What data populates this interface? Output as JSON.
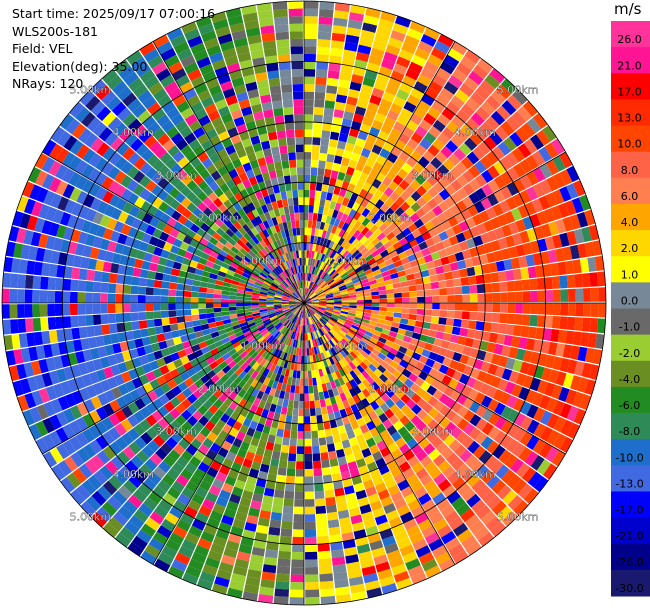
{
  "header": {
    "start_time": "Start time: 2025/09/17 07:00:16",
    "instrument": "WLS200s-181",
    "field": "Field: VEL",
    "elevation": "Elevation(deg): 35.00",
    "nrays": "NRays: 120"
  },
  "chart_data": {
    "type": "heatmap",
    "projection": "polar-ppi",
    "title": "",
    "field": "VEL",
    "n_rays": 120,
    "range_max_km": 5.0,
    "range_gates": 40,
    "range_rings_km": [
      1.0,
      2.0,
      3.0,
      4.0,
      5.0
    ],
    "range_ring_labels": [
      "1.00km",
      "2.00km",
      "3.00km",
      "4.00km",
      "5.00km"
    ],
    "spokes_deg": [
      0,
      30,
      60,
      90,
      120,
      150,
      180,
      210,
      240,
      270,
      300,
      330
    ],
    "colorbar": {
      "unit": "m/s",
      "ticks": [
        "26.0",
        "21.0",
        "17.0",
        "13.0",
        "10.0",
        "8.0",
        "6.0",
        "4.0",
        "2.0",
        "1.0",
        "0.0",
        "-1.0",
        "-2.0",
        "-4.0",
        "-6.0",
        "-8.0",
        "-10.0",
        "-13.0",
        "-17.0",
        "-21.0",
        "-26.0",
        "-30.0"
      ],
      "bins": [
        {
          "lo": 26,
          "hi": 30,
          "color": "#ff3399"
        },
        {
          "lo": 21,
          "hi": 26,
          "color": "#ff1493"
        },
        {
          "lo": 17,
          "hi": 21,
          "color": "#ff0000"
        },
        {
          "lo": 13,
          "hi": 17,
          "color": "#ff2a00"
        },
        {
          "lo": 10,
          "hi": 13,
          "color": "#ff4500"
        },
        {
          "lo": 8,
          "hi": 10,
          "color": "#ff6347"
        },
        {
          "lo": 6,
          "hi": 8,
          "color": "#ff7f50"
        },
        {
          "lo": 4,
          "hi": 6,
          "color": "#ffa500"
        },
        {
          "lo": 2,
          "hi": 4,
          "color": "#ffd700"
        },
        {
          "lo": 1,
          "hi": 2,
          "color": "#ffff00"
        },
        {
          "lo": 0,
          "hi": 1,
          "color": "#778899"
        },
        {
          "lo": -1,
          "hi": 0,
          "color": "#696969"
        },
        {
          "lo": -2,
          "hi": -1,
          "color": "#9acd32"
        },
        {
          "lo": -4,
          "hi": -2,
          "color": "#6b8e23"
        },
        {
          "lo": -6,
          "hi": -4,
          "color": "#228b22"
        },
        {
          "lo": -8,
          "hi": -6,
          "color": "#2e8b57"
        },
        {
          "lo": -10,
          "hi": -8,
          "color": "#1e6fcc"
        },
        {
          "lo": -13,
          "hi": -10,
          "color": "#4169e1"
        },
        {
          "lo": -17,
          "hi": -13,
          "color": "#0000ff"
        },
        {
          "lo": -21,
          "hi": -17,
          "color": "#0000cd"
        },
        {
          "lo": -26,
          "hi": -21,
          "color": "#00008b"
        },
        {
          "lo": -30,
          "hi": -26,
          "color": "#191970"
        }
      ]
    }
  }
}
